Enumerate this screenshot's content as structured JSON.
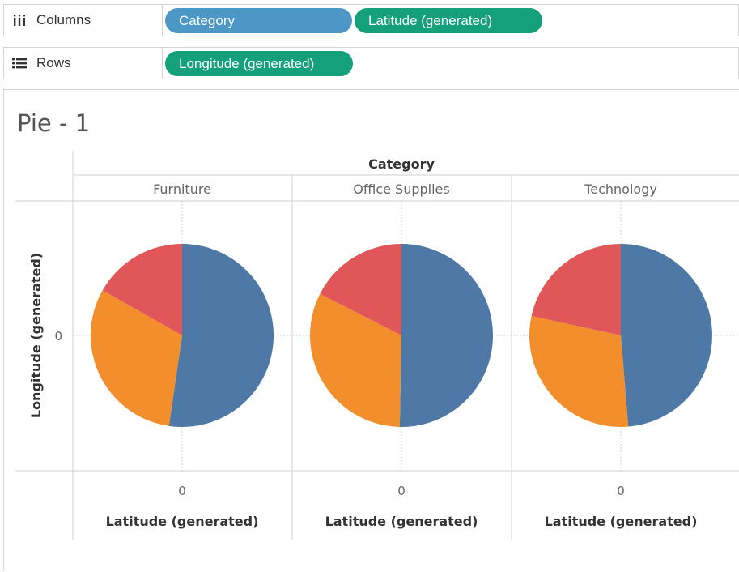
{
  "shelves": {
    "columns": {
      "label": "Columns",
      "icon": "columns-icon",
      "pills": [
        {
          "label": "Category",
          "color": "#4c97c6"
        },
        {
          "label": "Latitude (generated)",
          "color": "#14a07a"
        }
      ]
    },
    "rows": {
      "label": "Rows",
      "icon": "rows-icon",
      "pills": [
        {
          "label": "Longitude (generated)",
          "color": "#14a07a"
        }
      ]
    }
  },
  "sheet": {
    "title": "Pie - 1"
  },
  "chart_data": {
    "type": "pie",
    "header": "Category",
    "y_axis_label": "Longitude (generated)",
    "y_tick": "0",
    "x_tick": "0",
    "x_axis_label": "Latitude (generated)",
    "slice_colors": [
      "#4e79a7",
      "#f28e2b",
      "#e15759"
    ],
    "pies": [
      {
        "category": "Furniture",
        "fractions": [
          0.523,
          0.309,
          0.168
        ]
      },
      {
        "category": "Office Supplies",
        "fractions": [
          0.503,
          0.322,
          0.175
        ]
      },
      {
        "category": "Technology",
        "fractions": [
          0.487,
          0.297,
          0.216
        ]
      }
    ]
  }
}
